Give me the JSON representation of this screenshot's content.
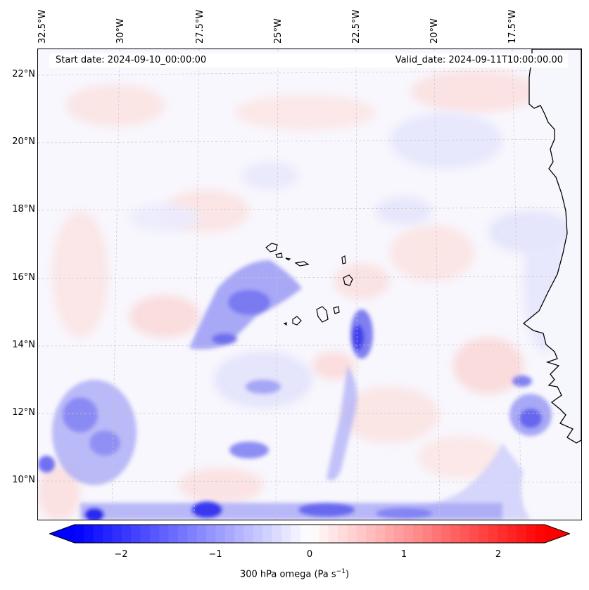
{
  "header": {
    "start_date": "Start date: 2024-09-10_00:00:00",
    "valid_date": "Valid_date: 2024-09-11T10:00:00.00"
  },
  "axes": {
    "longitude_labels": [
      "32.5°W",
      "30°W",
      "27.5°W",
      "25°W",
      "22.5°W",
      "20°W",
      "17.5°W"
    ],
    "latitude_labels": [
      "22°N",
      "20°N",
      "18°N",
      "16°N",
      "14°N",
      "12°N",
      "10°N"
    ]
  },
  "colorbar": {
    "ticks": [
      "−2",
      "−1",
      "0",
      "1",
      "2"
    ],
    "label": "300 hPa omega (Pa s",
    "label_exp": "−1",
    "label_close": ")",
    "min": -2.5,
    "max": 2.5,
    "colormap": "bwr",
    "low_color": "#0000ff",
    "mid_color": "#ffffff",
    "high_color": "#ff0000"
  },
  "map": {
    "field": "300 hPa omega",
    "units": "Pa s-1",
    "ocean_base_color": "#f7f7ff",
    "coastline_color": "#000000",
    "gridline_style": "dashed light gray"
  }
}
